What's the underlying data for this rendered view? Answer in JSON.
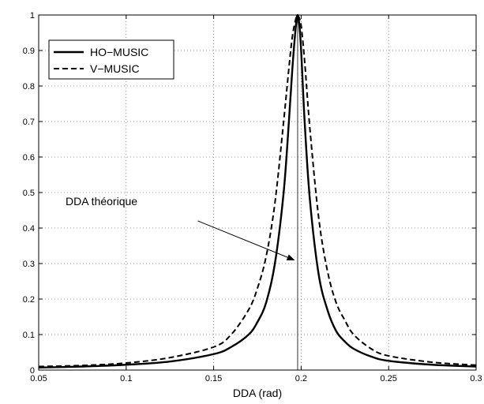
{
  "chart_data": {
    "type": "line",
    "title": "",
    "xlabel": "DDA (rad)",
    "ylabel": "",
    "xlim": [
      0.05,
      0.3
    ],
    "ylim": [
      0,
      1
    ],
    "xticks": [
      0.05,
      0.1,
      0.15,
      0.2,
      0.25,
      0.3
    ],
    "xtick_labels": [
      "0.05",
      "0.1",
      "0.15",
      "0.2",
      "0.25",
      "0.3"
    ],
    "yticks": [
      0,
      0.1,
      0.2,
      0.3,
      0.4,
      0.5,
      0.6,
      0.7,
      0.8,
      0.9,
      1
    ],
    "ytick_labels": [
      "0",
      "0.1",
      "0.2",
      "0.3",
      "0.4",
      "0.5",
      "0.6",
      "0.7",
      "0.8",
      "0.9",
      "1"
    ],
    "grid": true,
    "legend_position": "top-left",
    "series": [
      {
        "name": "HO−MUSIC",
        "style": "solid",
        "color": "#000000",
        "x": [
          0.05,
          0.075,
          0.1,
          0.125,
          0.15,
          0.16,
          0.17,
          0.175,
          0.18,
          0.185,
          0.19,
          0.193,
          0.195,
          0.197,
          0.198,
          0.199,
          0.2,
          0.202,
          0.205,
          0.21,
          0.215,
          0.22,
          0.225,
          0.23,
          0.24,
          0.25,
          0.275,
          0.3
        ],
        "y": [
          0.007,
          0.01,
          0.015,
          0.024,
          0.045,
          0.065,
          0.1,
          0.135,
          0.19,
          0.3,
          0.5,
          0.7,
          0.85,
          0.97,
          1.0,
          0.97,
          0.9,
          0.7,
          0.48,
          0.27,
          0.17,
          0.11,
          0.08,
          0.06,
          0.038,
          0.026,
          0.015,
          0.01
        ]
      },
      {
        "name": "V−MUSIC",
        "style": "dashed",
        "color": "#000000",
        "x": [
          0.05,
          0.075,
          0.1,
          0.125,
          0.15,
          0.16,
          0.17,
          0.175,
          0.18,
          0.185,
          0.19,
          0.193,
          0.195,
          0.197,
          0.198,
          0.199,
          0.2,
          0.202,
          0.205,
          0.21,
          0.215,
          0.22,
          0.225,
          0.23,
          0.24,
          0.25,
          0.275,
          0.3
        ],
        "y": [
          0.01,
          0.013,
          0.02,
          0.035,
          0.065,
          0.1,
          0.17,
          0.23,
          0.32,
          0.47,
          0.7,
          0.85,
          0.94,
          0.99,
          1.0,
          0.99,
          0.97,
          0.87,
          0.68,
          0.43,
          0.28,
          0.19,
          0.14,
          0.1,
          0.06,
          0.04,
          0.022,
          0.014
        ]
      }
    ],
    "reference_line": {
      "x": 0.198
    },
    "annotation": {
      "text": "DDA théorique",
      "arrow_from": [
        0.141,
        0.42
      ],
      "arrow_to": [
        0.196,
        0.31
      ]
    }
  }
}
